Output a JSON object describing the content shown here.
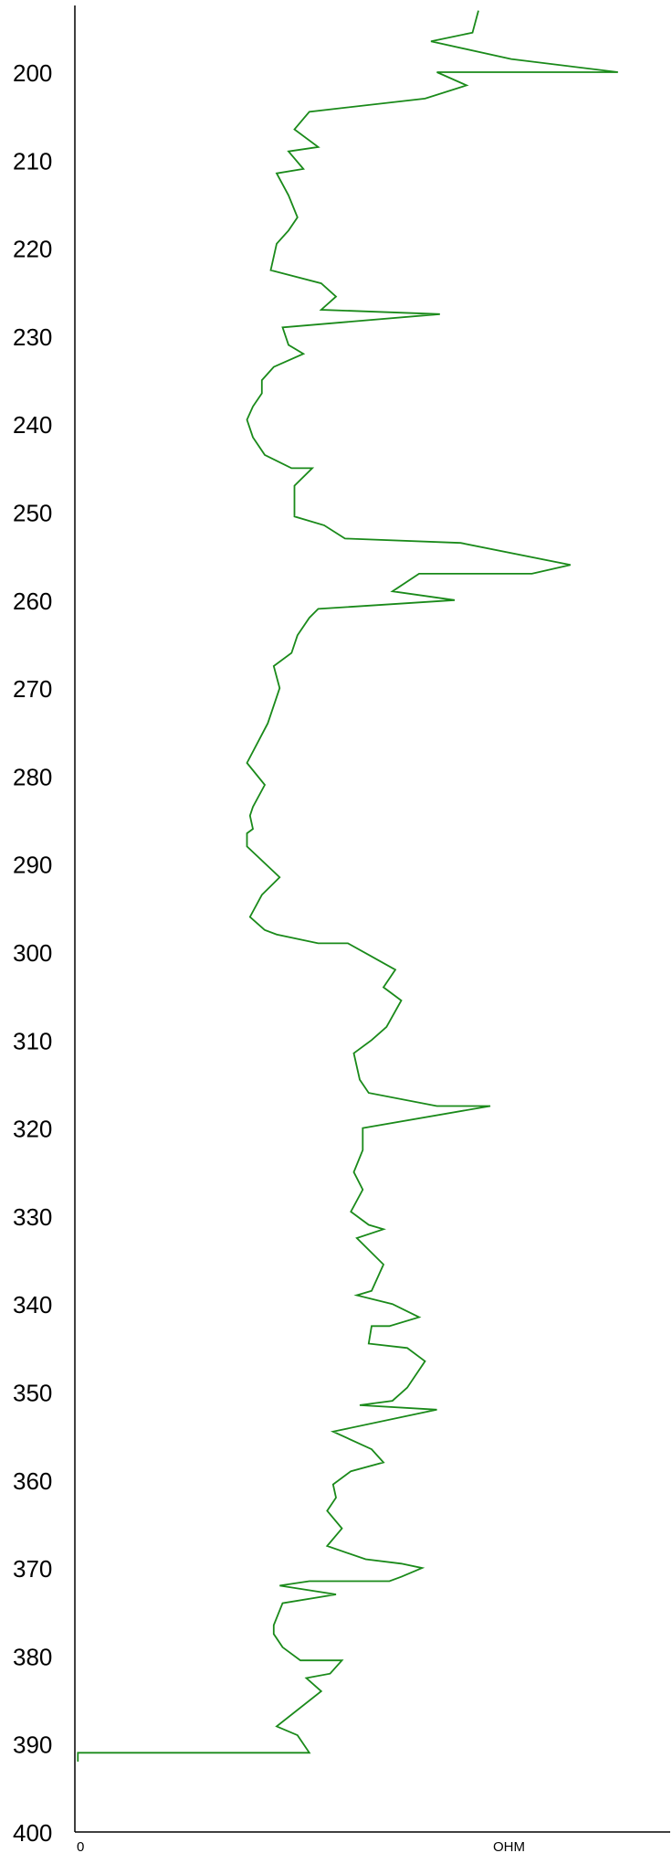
{
  "chart_data": {
    "type": "line",
    "orientation": "vertical-depth",
    "line_color": "#1a8a1a",
    "yticks": [
      200,
      210,
      220,
      230,
      240,
      250,
      260,
      270,
      280,
      290,
      300,
      310,
      320,
      330,
      340,
      350,
      360,
      370,
      380,
      390,
      400
    ],
    "ylim": [
      193,
      400
    ],
    "xlim": [
      0,
      100
    ],
    "xtick_left": "0",
    "xlabel": "OHM",
    "grid": false,
    "points": [
      [
        68.0,
        193
      ],
      [
        67.0,
        195.5
      ],
      [
        60.0,
        196.5
      ],
      [
        73.5,
        198.5
      ],
      [
        91.5,
        200.0
      ],
      [
        61.0,
        200.0
      ],
      [
        66.0,
        201.5
      ],
      [
        59.0,
        203.0
      ],
      [
        39.5,
        204.5
      ],
      [
        37.0,
        206.5
      ],
      [
        41.0,
        208.5
      ],
      [
        36.0,
        209.0
      ],
      [
        38.5,
        211.0
      ],
      [
        34.0,
        211.5
      ],
      [
        36.0,
        214.0
      ],
      [
        37.5,
        216.5
      ],
      [
        36.0,
        218.0
      ],
      [
        34.0,
        219.5
      ],
      [
        33.0,
        222.5
      ],
      [
        41.5,
        224.0
      ],
      [
        44.0,
        225.5
      ],
      [
        41.5,
        227.0
      ],
      [
        61.5,
        227.5
      ],
      [
        35.0,
        229.0
      ],
      [
        36.0,
        231.0
      ],
      [
        38.5,
        232.0
      ],
      [
        33.5,
        233.5
      ],
      [
        31.5,
        235.0
      ],
      [
        31.5,
        236.5
      ],
      [
        30.0,
        238.0
      ],
      [
        29.0,
        239.5
      ],
      [
        30.0,
        241.5
      ],
      [
        32.0,
        243.5
      ],
      [
        36.5,
        245.0
      ],
      [
        40.0,
        245.0
      ],
      [
        37.0,
        247.0
      ],
      [
        37.0,
        250.5
      ],
      [
        42.0,
        251.5
      ],
      [
        45.5,
        253.0
      ],
      [
        65.0,
        253.5
      ],
      [
        83.5,
        256.0
      ],
      [
        77.0,
        257.0
      ],
      [
        58.0,
        257.0
      ],
      [
        53.5,
        259.0
      ],
      [
        64.0,
        260.0
      ],
      [
        41.0,
        261.0
      ],
      [
        39.5,
        262.0
      ],
      [
        37.5,
        264.0
      ],
      [
        36.5,
        266.0
      ],
      [
        33.5,
        267.5
      ],
      [
        34.5,
        270.0
      ],
      [
        32.5,
        274.0
      ],
      [
        29.0,
        278.5
      ],
      [
        32.0,
        281.0
      ],
      [
        30.0,
        283.5
      ],
      [
        29.5,
        284.5
      ],
      [
        30.0,
        286.0
      ],
      [
        29.0,
        286.5
      ],
      [
        29.0,
        288.0
      ],
      [
        34.5,
        291.5
      ],
      [
        31.5,
        293.5
      ],
      [
        29.5,
        296.0
      ],
      [
        32.0,
        297.5
      ],
      [
        34.0,
        298.0
      ],
      [
        41.0,
        299.0
      ],
      [
        46.0,
        299.0
      ],
      [
        50.0,
        300.5
      ],
      [
        54.0,
        302.0
      ],
      [
        52.0,
        304.0
      ],
      [
        55.0,
        305.5
      ],
      [
        52.5,
        308.5
      ],
      [
        50.0,
        310.0
      ],
      [
        47.0,
        311.5
      ],
      [
        48.0,
        314.5
      ],
      [
        49.5,
        316.0
      ],
      [
        61.0,
        317.5
      ],
      [
        70.0,
        317.5
      ],
      [
        48.5,
        320.0
      ],
      [
        48.5,
        322.5
      ],
      [
        47.0,
        325.0
      ],
      [
        48.5,
        327.0
      ],
      [
        46.5,
        329.5
      ],
      [
        49.5,
        331.0
      ],
      [
        52.0,
        331.5
      ],
      [
        47.5,
        332.5
      ],
      [
        52.0,
        335.5
      ],
      [
        50.0,
        338.5
      ],
      [
        47.5,
        339.0
      ],
      [
        53.5,
        340.0
      ],
      [
        58.0,
        341.5
      ],
      [
        53.0,
        342.5
      ],
      [
        50.0,
        342.5
      ],
      [
        49.5,
        344.5
      ],
      [
        56.0,
        345.0
      ],
      [
        59.0,
        346.5
      ],
      [
        56.0,
        349.5
      ],
      [
        53.5,
        351.0
      ],
      [
        48.0,
        351.5
      ],
      [
        61.0,
        352.0
      ],
      [
        43.5,
        354.5
      ],
      [
        50.0,
        356.5
      ],
      [
        52.0,
        358.0
      ],
      [
        46.5,
        359.0
      ],
      [
        43.5,
        360.5
      ],
      [
        44.0,
        362.0
      ],
      [
        42.5,
        363.5
      ],
      [
        45.0,
        365.5
      ],
      [
        42.5,
        367.5
      ],
      [
        49.0,
        369.0
      ],
      [
        55.0,
        369.5
      ],
      [
        58.5,
        370.0
      ],
      [
        55.0,
        371.0
      ],
      [
        53.0,
        371.5
      ],
      [
        40.0,
        371.5
      ],
      [
        39.5,
        371.5
      ],
      [
        34.5,
        372.0
      ],
      [
        44.0,
        373.0
      ],
      [
        35.0,
        374.0
      ],
      [
        33.5,
        376.5
      ],
      [
        33.5,
        377.5
      ],
      [
        35.0,
        379.0
      ],
      [
        38.0,
        380.5
      ],
      [
        45.0,
        380.5
      ],
      [
        43.0,
        382.0
      ],
      [
        39.0,
        382.5
      ],
      [
        41.5,
        384.0
      ],
      [
        34.0,
        388.0
      ],
      [
        37.5,
        389.0
      ],
      [
        39.5,
        391.0
      ],
      [
        0.5,
        391.0
      ],
      [
        0.5,
        392.0
      ]
    ]
  }
}
